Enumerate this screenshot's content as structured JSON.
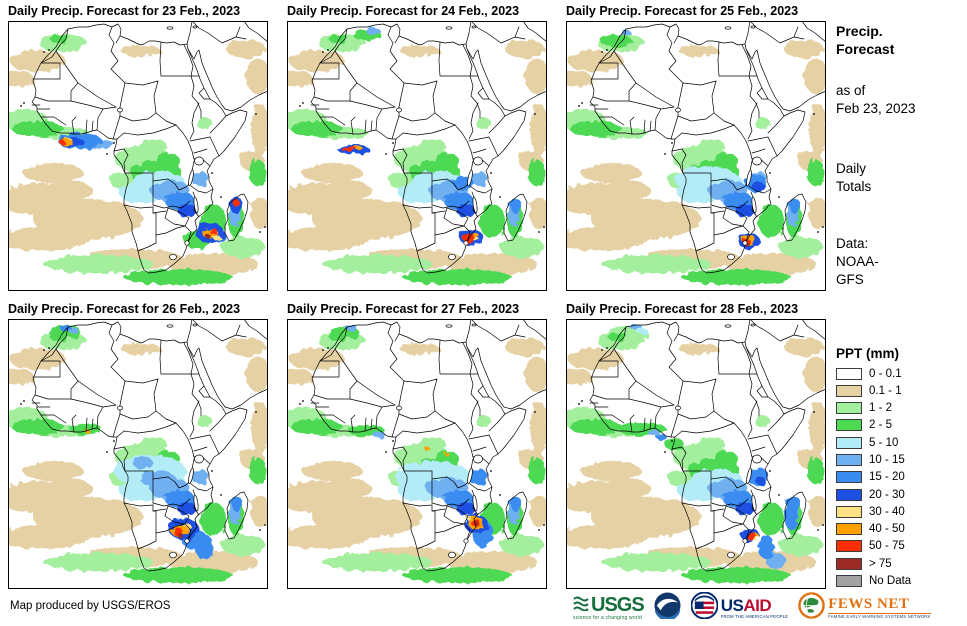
{
  "panels": [
    {
      "title": "Daily Precip. Forecast for 23 Feb., 2023",
      "precip": [
        [
          72,
          120,
          22,
          8,
          "b2"
        ],
        [
          90,
          123,
          16,
          5,
          "b1"
        ],
        [
          64,
          121,
          12,
          5,
          "b3"
        ],
        [
          58,
          121,
          7,
          3,
          "o"
        ],
        [
          60,
          119,
          4,
          2,
          "y"
        ],
        [
          54,
          121,
          3,
          2,
          "r"
        ],
        [
          202,
          212,
          14,
          10,
          "b3"
        ],
        [
          209,
          215,
          8,
          7,
          "b2"
        ],
        [
          202,
          212,
          8,
          5,
          "o"
        ],
        [
          205,
          210,
          4,
          3,
          "r"
        ],
        [
          200,
          215,
          3,
          2,
          "dr"
        ],
        [
          209,
          217,
          4,
          2,
          "y"
        ],
        [
          228,
          184,
          6,
          9,
          "b3"
        ],
        [
          228,
          182,
          3,
          4,
          "r"
        ],
        [
          190,
          218,
          14,
          10,
          "g2"
        ]
      ]
    },
    {
      "title": "Daily Precip. Forecast for 24 Feb., 2023",
      "precip": [
        [
          66,
          128,
          16,
          5,
          "b3"
        ],
        [
          62,
          128,
          8,
          2.5,
          "r"
        ],
        [
          71,
          127,
          5,
          2,
          "o"
        ],
        [
          184,
          216,
          12,
          8,
          "b3"
        ],
        [
          182,
          217,
          6,
          5,
          "r"
        ],
        [
          188,
          215,
          4,
          3,
          "o"
        ],
        [
          190,
          219,
          3,
          2,
          "y"
        ],
        [
          86,
          10,
          7,
          4,
          "b1"
        ],
        [
          80,
          14,
          14,
          5,
          "g2"
        ],
        [
          150,
          170,
          24,
          10,
          "c"
        ],
        [
          176,
          162,
          10,
          7,
          "b2"
        ]
      ]
    },
    {
      "title": "Daily Precip. Forecast for 25 Feb., 2023",
      "precip": [
        [
          183,
          220,
          11,
          8,
          "b3"
        ],
        [
          183,
          219,
          7,
          5,
          "o"
        ],
        [
          181,
          221,
          4,
          3,
          "r"
        ],
        [
          180,
          222,
          2.5,
          2,
          "dr"
        ],
        [
          190,
          162,
          11,
          9,
          "b2"
        ],
        [
          193,
          166,
          6,
          5,
          "b3"
        ],
        [
          50,
          20,
          16,
          6,
          "g2"
        ],
        [
          60,
          12,
          5,
          3,
          "b1"
        ],
        [
          140,
          158,
          32,
          13,
          "c"
        ]
      ]
    },
    {
      "title": "Daily Precip. Forecast for 26 Feb., 2023",
      "precip": [
        [
          176,
          210,
          15,
          11,
          "b3"
        ],
        [
          186,
          220,
          13,
          10,
          "b2"
        ],
        [
          172,
          212,
          9,
          6,
          "o"
        ],
        [
          170,
          213,
          5,
          4,
          "r"
        ],
        [
          173,
          217,
          3,
          2,
          "dr"
        ],
        [
          178,
          207,
          5,
          3,
          "y"
        ],
        [
          196,
          228,
          9,
          13,
          "b2"
        ],
        [
          57,
          13,
          16,
          7,
          "g2"
        ],
        [
          58,
          9,
          6,
          3,
          "b2"
        ],
        [
          66,
          12,
          5,
          3,
          "b1"
        ],
        [
          78,
          110,
          16,
          6,
          "g2"
        ],
        [
          80,
          113,
          2.5,
          2,
          "o"
        ],
        [
          142,
          152,
          36,
          16,
          "c"
        ],
        [
          150,
          160,
          18,
          8,
          "b1"
        ],
        [
          135,
          144,
          10,
          6,
          "b1"
        ]
      ]
    },
    {
      "title": "Daily Precip. Forecast for 27 Feb., 2023",
      "precip": [
        [
          189,
          205,
          12,
          9,
          "b3"
        ],
        [
          189,
          204,
          8,
          6,
          "o"
        ],
        [
          189,
          204,
          5,
          3.5,
          "r"
        ],
        [
          190,
          205,
          2,
          1.5,
          "dr"
        ],
        [
          184,
          200,
          4,
          2,
          "y"
        ],
        [
          196,
          215,
          10,
          14,
          "b2"
        ],
        [
          146,
          158,
          38,
          16,
          "c"
        ],
        [
          158,
          168,
          20,
          10,
          "b1"
        ],
        [
          58,
          14,
          15,
          6,
          "g2"
        ],
        [
          64,
          9,
          6,
          3,
          "b1"
        ],
        [
          80,
          112,
          18,
          6,
          "g2"
        ],
        [
          92,
          116,
          6,
          3,
          "b1"
        ],
        [
          191,
          158,
          10,
          8,
          "b2"
        ],
        [
          140,
          130,
          3,
          2,
          "o"
        ],
        [
          160,
          135,
          2.5,
          2,
          "o"
        ]
      ]
    },
    {
      "title": "Daily Precip. Forecast for 28 Feb., 2023",
      "precip": [
        [
          184,
          216,
          9,
          7,
          "b3"
        ],
        [
          186,
          218,
          5,
          4,
          "r"
        ],
        [
          189,
          217,
          4,
          3,
          "o"
        ],
        [
          190,
          220,
          2.5,
          2,
          "y"
        ],
        [
          192,
          158,
          11,
          9,
          "b2"
        ],
        [
          195,
          162,
          5,
          4,
          "b3"
        ],
        [
          76,
          110,
          24,
          7,
          "g2"
        ],
        [
          88,
          114,
          6,
          3,
          "b1"
        ],
        [
          95,
          118,
          5,
          3,
          "b2"
        ],
        [
          108,
          125,
          10,
          6,
          "g2"
        ],
        [
          62,
          14,
          20,
          7,
          "g1"
        ],
        [
          70,
          8,
          6,
          3,
          "b1"
        ],
        [
          76,
          12,
          6,
          3,
          "c"
        ],
        [
          200,
          228,
          8,
          12,
          "b2"
        ],
        [
          210,
          242,
          10,
          8,
          "b1"
        ],
        [
          225,
          195,
          7,
          16,
          "b2"
        ]
      ]
    }
  ],
  "base_precip": [
    [
      30,
      40,
      28,
      11,
      "t"
    ],
    [
      10,
      58,
      16,
      8,
      "t"
    ],
    [
      133,
      30,
      20,
      6,
      "t"
    ],
    [
      238,
      28,
      20,
      9,
      "t"
    ],
    [
      250,
      55,
      12,
      18,
      "t"
    ],
    [
      252,
      108,
      9,
      26,
      "t"
    ],
    [
      244,
      140,
      12,
      10,
      "t"
    ],
    [
      45,
      152,
      30,
      10,
      "t"
    ],
    [
      30,
      178,
      42,
      16,
      "t"
    ],
    [
      80,
      198,
      55,
      20,
      "t"
    ],
    [
      35,
      218,
      45,
      12,
      "t"
    ],
    [
      125,
      238,
      50,
      10,
      "t"
    ],
    [
      205,
      243,
      45,
      11,
      "t"
    ],
    [
      252,
      192,
      10,
      16,
      "t"
    ],
    [
      60,
      170,
      25,
      10,
      "t"
    ],
    [
      18,
      100,
      22,
      12,
      "g1"
    ],
    [
      55,
      112,
      26,
      6,
      "g1"
    ],
    [
      55,
      22,
      24,
      9,
      "g1"
    ],
    [
      135,
      138,
      28,
      14,
      "g1"
    ],
    [
      120,
      160,
      18,
      10,
      "g1"
    ],
    [
      196,
      102,
      8,
      6,
      "g1"
    ],
    [
      90,
      243,
      55,
      9,
      "g1"
    ],
    [
      235,
      226,
      22,
      11,
      "g1"
    ],
    [
      145,
      125,
      14,
      7,
      "g1"
    ],
    [
      30,
      108,
      26,
      8,
      "g2"
    ],
    [
      52,
      18,
      10,
      4,
      "g2"
    ],
    [
      148,
      152,
      26,
      12,
      "g2"
    ],
    [
      160,
      140,
      12,
      8,
      "g2"
    ],
    [
      170,
      256,
      55,
      8,
      "g2"
    ],
    [
      250,
      152,
      9,
      13,
      "g2"
    ],
    [
      205,
      200,
      13,
      17,
      "g2"
    ],
    [
      228,
      198,
      8,
      19,
      "g2"
    ],
    [
      150,
      163,
      28,
      13,
      "c"
    ],
    [
      132,
      172,
      20,
      10,
      "c"
    ],
    [
      162,
      170,
      20,
      11,
      "b1"
    ],
    [
      192,
      158,
      9,
      7,
      "b1"
    ],
    [
      227,
      192,
      6,
      14,
      "b1"
    ],
    [
      172,
      180,
      15,
      9,
      "b2"
    ],
    [
      229,
      185,
      5,
      8,
      "b2"
    ],
    [
      180,
      190,
      10,
      7,
      "b3"
    ]
  ],
  "palette": {
    "w": "#ffffff",
    "t": "#e6d1a5",
    "g1": "#a4ef9d",
    "g2": "#4ed952",
    "c": "#b3ecf7",
    "b1": "#6fb0f1",
    "b2": "#3a8cf0",
    "b3": "#1d50e2",
    "y": "#fce184",
    "o": "#ffa200",
    "r": "#fa2d00",
    "dr": "#9e2a25",
    "nd": "#a2a2a2"
  },
  "sidebar": {
    "title": [
      "Precip.",
      "Forecast"
    ],
    "asof": [
      "as of",
      "Feb 23, 2023"
    ],
    "totals": [
      "Daily",
      "Totals"
    ],
    "source": [
      "Data:",
      "NOAA-",
      "GFS"
    ]
  },
  "legend": {
    "title": "PPT (mm)",
    "items": [
      {
        "label": "0 - 0.1",
        "color": "#ffffff"
      },
      {
        "label": "0.1 - 1",
        "color": "#e6d1a5"
      },
      {
        "label": "1 - 2",
        "color": "#a4ef9d"
      },
      {
        "label": "2 - 5",
        "color": "#4ed952"
      },
      {
        "label": "5 - 10",
        "color": "#b3ecf7"
      },
      {
        "label": "10 - 15",
        "color": "#6fb0f1"
      },
      {
        "label": "15 - 20",
        "color": "#3a8cf0"
      },
      {
        "label": "20 - 30",
        "color": "#1d50e2"
      },
      {
        "label": "30 - 40",
        "color": "#fce184"
      },
      {
        "label": "40 - 50",
        "color": "#ffa200"
      },
      {
        "label": "50 - 75",
        "color": "#fa2d00"
      },
      {
        "label": "> 75",
        "color": "#9e2a25"
      },
      {
        "label": "No Data",
        "color": "#a2a2a2"
      }
    ]
  },
  "footer": {
    "credit": "Map produced by USGS/EROS"
  },
  "logos": {
    "usgs": {
      "name": "USGS",
      "tagline": "science for a changing world"
    },
    "noaa": {
      "name": "NOAA"
    },
    "usaid": {
      "us": "US",
      "aid": "AID",
      "tagline": "FROM THE AMERICAN PEOPLE"
    },
    "fewsnet": {
      "name": "FEWS NET",
      "tagline": "FAMINE EARLY WARNING SYSTEMS NETWORK"
    }
  }
}
